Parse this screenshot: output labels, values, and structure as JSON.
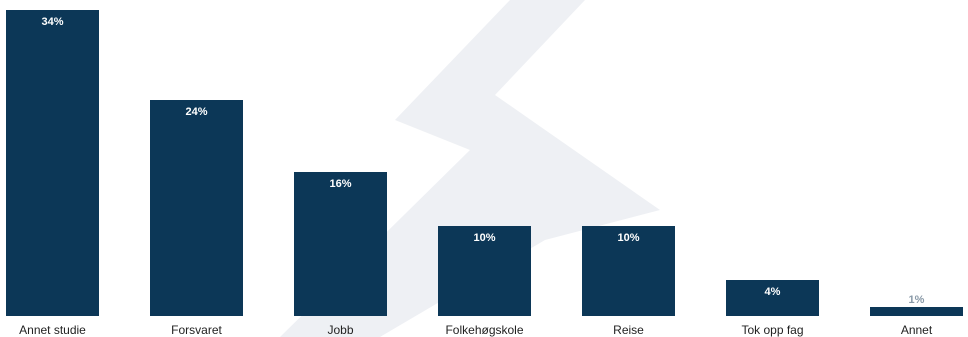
{
  "chart_data": {
    "type": "bar",
    "title": "",
    "xlabel": "",
    "ylabel": "",
    "categories": [
      "Annet studie",
      "Forsvaret",
      "Jobb",
      "Folkehøgskole",
      "Reise",
      "Tok opp fag",
      "Annet"
    ],
    "values": [
      34,
      24,
      16,
      10,
      10,
      4,
      1
    ],
    "value_labels": [
      "34%",
      "24%",
      "16%",
      "10%",
      "10%",
      "4%",
      "1%"
    ],
    "unit": "%",
    "ylim": [
      0,
      34
    ],
    "grid": false,
    "legend": "none",
    "bar_color": "#0c3757",
    "label_color": "#ffffff"
  }
}
